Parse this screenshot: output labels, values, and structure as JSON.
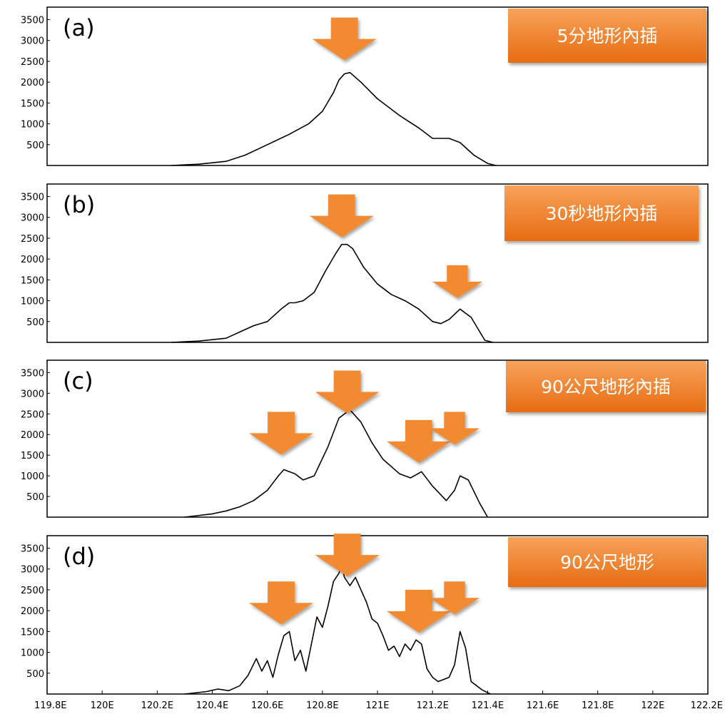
{
  "colors": {
    "badge_top": "#f7a25a",
    "badge_bottom": "#e76c12",
    "arrow": "#f28a30",
    "line": "#000000"
  },
  "chart_data": [
    {
      "type": "line",
      "panel_label": "(a)",
      "badge": "5分地形內插",
      "xlim": [
        119.8,
        122.2
      ],
      "ylim": [
        0,
        3800
      ],
      "yticks": [
        500,
        1000,
        1500,
        2000,
        2500,
        3000,
        3500
      ],
      "x": [
        120.25,
        120.35,
        120.45,
        120.52,
        120.6,
        120.68,
        120.75,
        120.8,
        120.84,
        120.86,
        120.88,
        120.9,
        120.94,
        121.0,
        121.08,
        121.15,
        121.2,
        121.26,
        121.3,
        121.35,
        121.4,
        121.43
      ],
      "y": [
        0,
        30,
        100,
        250,
        500,
        750,
        1000,
        1300,
        1750,
        2050,
        2200,
        2230,
        2000,
        1600,
        1200,
        900,
        650,
        650,
        550,
        250,
        50,
        0
      ],
      "arrows": [
        {
          "x": 120.88,
          "y": 3550,
          "size": "large"
        }
      ]
    },
    {
      "type": "line",
      "panel_label": "(b)",
      "badge": "30秒地形內插",
      "xlim": [
        119.8,
        122.2
      ],
      "ylim": [
        0,
        3800
      ],
      "yticks": [
        500,
        1000,
        1500,
        2000,
        2500,
        3000,
        3500
      ],
      "x": [
        120.25,
        120.35,
        120.45,
        120.5,
        120.55,
        120.6,
        120.65,
        120.68,
        120.7,
        120.73,
        120.77,
        120.81,
        120.85,
        120.87,
        120.89,
        120.91,
        120.95,
        121.0,
        121.05,
        121.1,
        121.15,
        121.2,
        121.23,
        121.26,
        121.3,
        121.34,
        121.39,
        121.42
      ],
      "y": [
        0,
        30,
        100,
        250,
        400,
        500,
        800,
        950,
        950,
        1000,
        1200,
        1700,
        2150,
        2350,
        2350,
        2250,
        1800,
        1400,
        1150,
        1000,
        800,
        500,
        450,
        550,
        800,
        600,
        50,
        0
      ],
      "arrows": [
        {
          "x": 120.87,
          "y": 3550,
          "size": "large"
        },
        {
          "x": 121.29,
          "y": 1850,
          "size": "small"
        }
      ]
    },
    {
      "type": "line",
      "panel_label": "(c)",
      "badge": "90公尺地形內插",
      "xlim": [
        119.8,
        122.2
      ],
      "ylim": [
        0,
        3800
      ],
      "yticks": [
        500,
        1000,
        1500,
        2000,
        2500,
        3000,
        3500
      ],
      "x": [
        120.3,
        120.4,
        120.45,
        120.5,
        120.55,
        120.6,
        120.64,
        120.66,
        120.7,
        120.73,
        120.77,
        120.82,
        120.86,
        120.9,
        120.94,
        120.98,
        121.02,
        121.08,
        121.12,
        121.16,
        121.2,
        121.25,
        121.28,
        121.3,
        121.33,
        121.37,
        121.4
      ],
      "y": [
        0,
        80,
        150,
        250,
        400,
        650,
        1000,
        1150,
        1050,
        900,
        1000,
        1700,
        2400,
        2600,
        2300,
        1800,
        1400,
        1050,
        950,
        1100,
        750,
        400,
        650,
        1000,
        900,
        350,
        0
      ],
      "arrows": [
        {
          "x": 120.65,
          "y": 2550,
          "size": "large"
        },
        {
          "x": 120.89,
          "y": 3550,
          "size": "large"
        },
        {
          "x": 121.15,
          "y": 2350,
          "size": "large"
        },
        {
          "x": 121.28,
          "y": 2550,
          "size": "small"
        }
      ]
    },
    {
      "type": "line",
      "panel_label": "(d)",
      "badge": "90公尺地形",
      "xlim": [
        119.8,
        122.2
      ],
      "ylim": [
        0,
        3800
      ],
      "yticks": [
        500,
        1000,
        1500,
        2000,
        2500,
        3000,
        3500
      ],
      "xticks": [
        "119.8E",
        "120E",
        "120.2E",
        "120.4E",
        "120.6E",
        "120.8E",
        "121E",
        "121.2E",
        "121.4E",
        "121.6E",
        "121.8E",
        "122E",
        "122.2E"
      ],
      "x": [
        120.3,
        120.38,
        120.42,
        120.46,
        120.5,
        120.53,
        120.56,
        120.58,
        120.6,
        120.62,
        120.64,
        120.66,
        120.68,
        120.7,
        120.72,
        120.74,
        120.76,
        120.78,
        120.8,
        120.82,
        120.84,
        120.86,
        120.87,
        120.88,
        120.9,
        120.92,
        120.94,
        120.96,
        120.98,
        121.0,
        121.02,
        121.04,
        121.06,
        121.08,
        121.1,
        121.12,
        121.14,
        121.16,
        121.18,
        121.2,
        121.22,
        121.24,
        121.26,
        121.28,
        121.3,
        121.32,
        121.34,
        121.36,
        121.38,
        121.41
      ],
      "y": [
        0,
        60,
        120,
        80,
        200,
        450,
        850,
        550,
        800,
        400,
        950,
        1400,
        1500,
        800,
        1050,
        550,
        1200,
        1850,
        1600,
        2100,
        2700,
        2900,
        3100,
        2800,
        2600,
        2800,
        2500,
        2200,
        1800,
        1700,
        1400,
        1050,
        1150,
        900,
        1200,
        1050,
        1300,
        1200,
        600,
        400,
        300,
        350,
        400,
        700,
        1500,
        1100,
        300,
        200,
        100,
        0
      ],
      "arrows": [
        {
          "x": 120.65,
          "y": 2700,
          "size": "large"
        },
        {
          "x": 120.89,
          "y": 3850,
          "size": "large"
        },
        {
          "x": 121.15,
          "y": 2500,
          "size": "large"
        },
        {
          "x": 121.28,
          "y": 2700,
          "size": "small"
        }
      ]
    }
  ]
}
